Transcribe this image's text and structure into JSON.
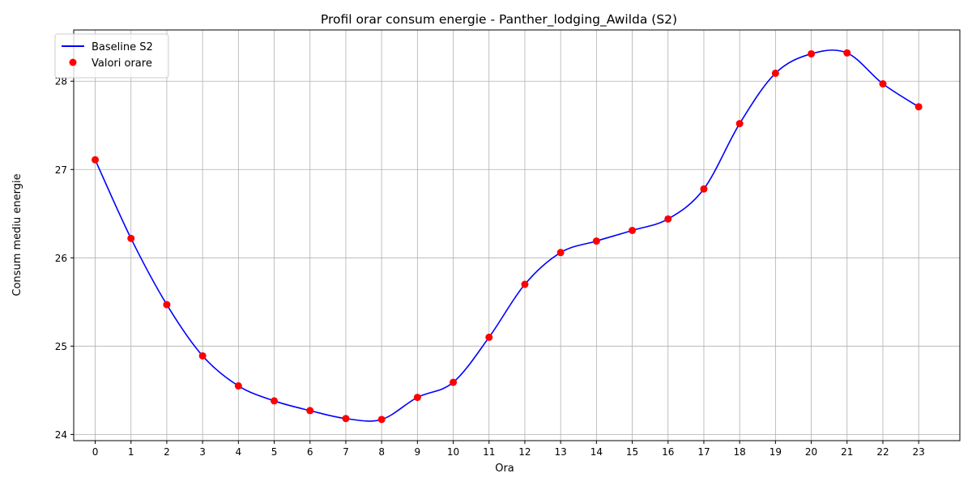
{
  "chart_data": {
    "type": "line",
    "title": "Profil orar consum energie - Panther_lodging_Awilda (S2)",
    "xlabel": "Ora",
    "ylabel": "Consum mediu energie",
    "x": [
      0,
      1,
      2,
      3,
      4,
      5,
      6,
      7,
      8,
      9,
      10,
      11,
      12,
      13,
      14,
      15,
      16,
      17,
      18,
      19,
      20,
      21,
      22,
      23
    ],
    "xlim": [
      -0.6,
      24.15
    ],
    "ylim": [
      23.93,
      28.58
    ],
    "yticks": [
      24,
      25,
      26,
      27,
      28
    ],
    "grid": true,
    "legend_position": "top-left",
    "series": [
      {
        "name": "Baseline S2",
        "kind": "line",
        "color": "#0000ff",
        "values": [
          27.11,
          26.22,
          25.47,
          24.89,
          24.55,
          24.38,
          24.27,
          24.18,
          24.17,
          24.42,
          24.59,
          25.1,
          25.7,
          26.06,
          26.19,
          26.31,
          26.44,
          26.78,
          27.52,
          28.09,
          28.31,
          28.32,
          27.97,
          27.71
        ]
      },
      {
        "name": "Valori orare",
        "kind": "scatter",
        "color": "#ff0000",
        "values": [
          27.11,
          26.22,
          25.47,
          24.89,
          24.55,
          24.38,
          24.27,
          24.18,
          24.17,
          24.42,
          24.59,
          25.1,
          25.7,
          26.06,
          26.19,
          26.31,
          26.44,
          26.78,
          27.52,
          28.09,
          28.31,
          28.32,
          27.97,
          27.71
        ]
      }
    ]
  }
}
